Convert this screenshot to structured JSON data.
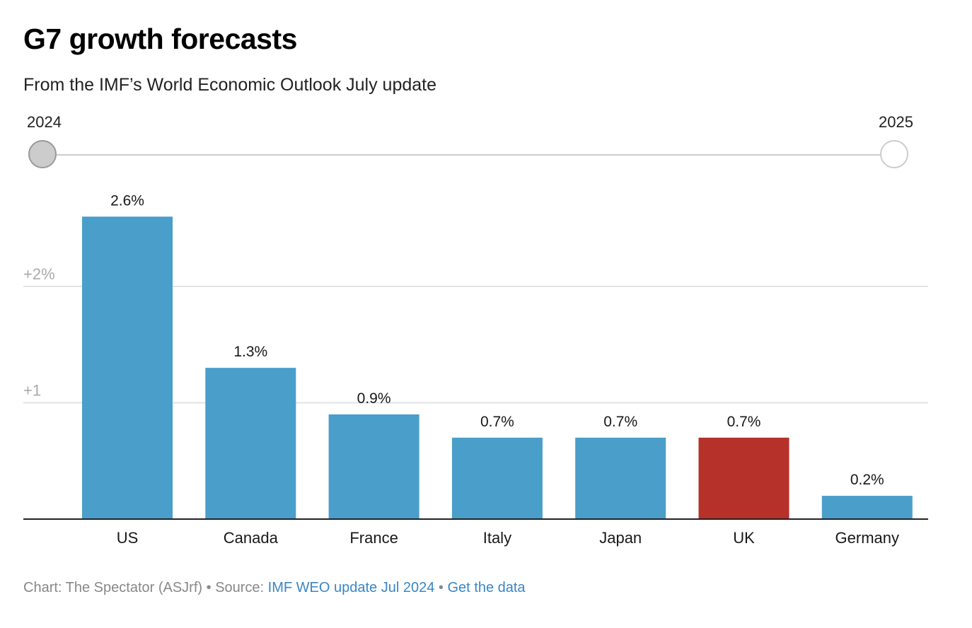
{
  "header": {
    "title": "G7 growth forecasts",
    "subtitle": "From the IMF’s World Economic Outlook July update"
  },
  "year_slider": {
    "options": [
      "2024",
      "2025"
    ],
    "selected": "2024"
  },
  "colors": {
    "bar_default": "#4a9eca",
    "bar_highlight": "#b5312a",
    "gridline": "#e3e3e3",
    "axis": "#222222",
    "tick_label": "#aaaaaa"
  },
  "chart_data": {
    "type": "bar",
    "title": "G7 growth forecasts",
    "subtitle": "From the IMF’s World Economic Outlook July update",
    "categories": [
      "US",
      "Canada",
      "France",
      "Italy",
      "Japan",
      "UK",
      "Germany"
    ],
    "values": [
      2.6,
      1.3,
      0.9,
      0.7,
      0.7,
      0.7,
      0.2
    ],
    "value_labels": [
      "2.6%",
      "1.3%",
      "0.9%",
      "0.7%",
      "0.7%",
      "0.7%",
      "0.2%"
    ],
    "highlight": "UK",
    "xlabel": "",
    "ylabel": "",
    "ylim": [
      0,
      2.6
    ],
    "yticks": [
      1,
      2
    ],
    "ytick_labels": [
      "+1",
      "+2%"
    ],
    "grid": true,
    "legend": "none"
  },
  "footer": {
    "credit": "Chart: The Spectator (ASJrf)",
    "separator": " • ",
    "source_prefix": "Source: ",
    "source_link": "IMF WEO update Jul 2024",
    "data_link": "Get the data"
  }
}
